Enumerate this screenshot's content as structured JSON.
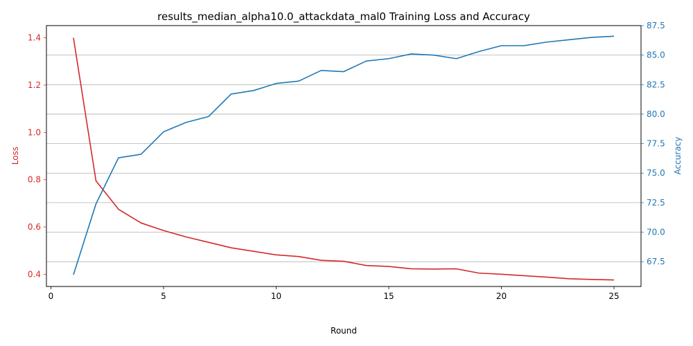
{
  "chart_data": {
    "type": "line",
    "title": "results_median_alpha10.0_attackdata_mal0 Training Loss and Accuracy",
    "xlabel": "Round",
    "ylabel_left": "Loss",
    "ylabel_right": "Accuracy",
    "xlim": [
      -0.2,
      26.2
    ],
    "ylim_left": [
      0.3483,
      1.4517
    ],
    "ylim_right": [
      65.4,
      87.5
    ],
    "x_ticks": [
      0,
      5,
      10,
      15,
      20,
      25
    ],
    "y_ticks_left": [
      0.4,
      0.6,
      0.8,
      1.0,
      1.2,
      1.4
    ],
    "y_ticks_left_labels": [
      "0.4",
      "0.6",
      "0.8",
      "1.0",
      "1.2",
      "1.4"
    ],
    "y_ticks_right": [
      67.5,
      70.0,
      72.5,
      75.0,
      77.5,
      80.0,
      82.5,
      85.0,
      87.5
    ],
    "y_ticks_right_labels": [
      "67.5",
      "70.0",
      "72.5",
      "75.0",
      "77.5",
      "80.0",
      "82.5",
      "85.0",
      "87.5"
    ],
    "grid": "horizontal gridlines at right-axis ticks",
    "colors": {
      "loss": "#d62728",
      "accuracy": "#1f77b4"
    },
    "x": [
      1,
      2,
      3,
      4,
      5,
      6,
      7,
      8,
      9,
      10,
      11,
      12,
      13,
      14,
      15,
      16,
      17,
      18,
      19,
      20,
      21,
      22,
      23,
      24,
      25
    ],
    "series": [
      {
        "name": "Loss",
        "axis": "left",
        "values": [
          1.4,
          0.795,
          0.675,
          0.617,
          0.585,
          0.558,
          0.535,
          0.512,
          0.497,
          0.482,
          0.475,
          0.459,
          0.455,
          0.437,
          0.433,
          0.423,
          0.422,
          0.423,
          0.405,
          0.4,
          0.394,
          0.388,
          0.381,
          0.378,
          0.376
        ]
      },
      {
        "name": "Accuracy",
        "axis": "right",
        "values": [
          66.4,
          72.4,
          76.3,
          76.6,
          78.5,
          79.3,
          79.8,
          81.7,
          82.0,
          82.6,
          82.8,
          83.7,
          83.6,
          84.5,
          84.7,
          85.1,
          85.0,
          84.7,
          85.3,
          85.8,
          85.8,
          86.1,
          86.3,
          86.5,
          86.6
        ]
      }
    ]
  }
}
